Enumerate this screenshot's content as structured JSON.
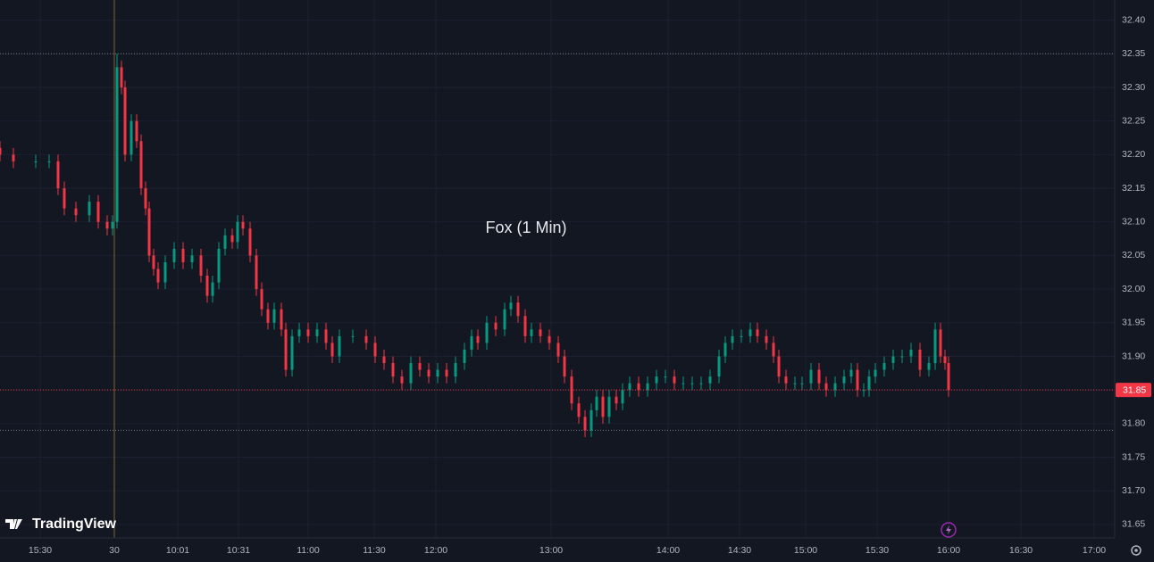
{
  "chart_data": {
    "type": "candlestick",
    "title": "Fox (1 Min)",
    "brand": "TradingView",
    "up_color": "#089981",
    "down_color": "#f23645",
    "grid": true,
    "xlim": [
      0,
      1248
    ],
    "ylim": [
      31.63,
      32.43
    ],
    "yticks": [
      31.65,
      {
        "value": 31.7,
        "label": "31.70"
      },
      31.75,
      {
        "value": 31.8,
        "label": "31.80"
      },
      31.85,
      {
        "value": 31.9,
        "label": "31.90"
      },
      31.95,
      {
        "value": 32.0,
        "label": "32.00"
      },
      32.05,
      {
        "value": 32.1,
        "label": "32.10"
      },
      32.15,
      {
        "value": 32.2,
        "label": "32.20"
      },
      32.25,
      {
        "value": 32.3,
        "label": "32.30"
      },
      32.35,
      {
        "value": 32.4,
        "label": "32.40"
      }
    ],
    "xticks": [
      {
        "value": 45,
        "label": "15:30"
      },
      {
        "value": 128,
        "label": "30"
      },
      {
        "value": 199,
        "label": "10:01"
      },
      {
        "value": 267,
        "label": "10:31"
      },
      {
        "value": 345,
        "label": "11:00"
      },
      {
        "value": 419,
        "label": "11:30"
      },
      {
        "value": 488,
        "label": "12:00"
      },
      {
        "value": 617,
        "label": "13:00"
      },
      {
        "value": 748,
        "label": "14:00"
      },
      {
        "value": 828,
        "label": "14:30"
      },
      {
        "value": 902,
        "label": "15:00"
      },
      {
        "value": 982,
        "label": "15:30"
      },
      {
        "value": 1062,
        "label": "16:00"
      },
      {
        "value": 1143,
        "label": "16:30"
      },
      {
        "value": 1225,
        "label": "17:00"
      }
    ],
    "session_break": 128,
    "price_lines": [
      32.35,
      31.79
    ],
    "last_price": 31.85,
    "x": [
      0,
      15,
      40,
      55,
      65,
      72,
      85,
      100,
      110,
      120,
      126,
      131,
      136,
      140,
      147,
      153,
      158,
      163,
      167,
      172,
      177,
      185,
      195,
      205,
      215,
      225,
      232,
      238,
      245,
      252,
      260,
      266,
      272,
      280,
      287,
      293,
      300,
      307,
      315,
      320,
      327,
      335,
      345,
      355,
      365,
      372,
      380,
      395,
      410,
      420,
      430,
      440,
      450,
      460,
      470,
      480,
      490,
      500,
      510,
      520,
      528,
      535,
      545,
      555,
      565,
      572,
      580,
      588,
      595,
      605,
      615,
      625,
      632,
      640,
      648,
      655,
      662,
      668,
      675,
      682,
      690,
      697,
      705,
      715,
      725,
      735,
      745,
      755,
      765,
      775,
      785,
      795,
      805,
      812,
      820,
      830,
      840,
      848,
      858,
      866,
      872,
      880,
      890,
      898,
      908,
      917,
      925,
      935,
      945,
      953,
      960,
      967,
      973,
      980,
      990,
      1000,
      1010,
      1020,
      1030,
      1040,
      1047,
      1053,
      1058,
      1062
    ],
    "open": [
      32.21,
      32.2,
      32.19,
      32.19,
      32.19,
      32.15,
      32.12,
      32.11,
      32.13,
      32.1,
      32.09,
      32.1,
      32.33,
      32.3,
      32.2,
      32.25,
      32.22,
      32.15,
      32.12,
      32.05,
      32.03,
      32.01,
      32.04,
      32.06,
      32.04,
      32.05,
      32.02,
      31.99,
      32.01,
      32.06,
      32.08,
      32.07,
      32.1,
      32.09,
      32.05,
      32.0,
      31.97,
      31.95,
      31.97,
      31.94,
      31.88,
      31.93,
      31.94,
      31.93,
      31.94,
      31.92,
      31.9,
      31.93,
      31.93,
      31.92,
      31.9,
      31.89,
      31.87,
      31.86,
      31.89,
      31.88,
      31.87,
      31.88,
      31.87,
      31.89,
      31.91,
      31.93,
      31.92,
      31.95,
      31.94,
      31.97,
      31.98,
      31.96,
      31.93,
      31.94,
      31.93,
      31.92,
      31.9,
      31.87,
      31.83,
      31.81,
      31.79,
      31.82,
      31.84,
      31.81,
      31.84,
      31.83,
      31.85,
      31.86,
      31.85,
      31.86,
      31.87,
      31.87,
      31.86,
      31.86,
      31.86,
      31.86,
      31.87,
      31.9,
      31.92,
      31.93,
      31.93,
      31.94,
      31.93,
      31.92,
      31.9,
      31.87,
      31.86,
      31.86,
      31.86,
      31.88,
      31.86,
      31.85,
      31.86,
      31.87,
      31.88,
      31.85,
      31.85,
      31.87,
      31.88,
      31.89,
      31.9,
      31.9,
      31.91,
      31.88,
      31.89,
      31.94,
      31.9,
      31.89
    ],
    "high": [
      32.22,
      32.21,
      32.2,
      32.2,
      32.2,
      32.16,
      32.13,
      32.14,
      32.14,
      32.11,
      32.11,
      32.35,
      32.34,
      32.31,
      32.26,
      32.26,
      32.23,
      32.16,
      32.13,
      32.06,
      32.04,
      32.05,
      32.07,
      32.07,
      32.06,
      32.06,
      32.03,
      32.02,
      32.07,
      32.09,
      32.09,
      32.11,
      32.11,
      32.1,
      32.06,
      32.01,
      31.98,
      31.98,
      31.98,
      31.95,
      31.94,
      31.95,
      31.95,
      31.95,
      31.95,
      31.93,
      31.94,
      31.94,
      31.94,
      31.93,
      31.91,
      31.9,
      31.88,
      31.9,
      31.9,
      31.89,
      31.89,
      31.89,
      31.9,
      31.92,
      31.94,
      31.94,
      31.96,
      31.96,
      31.98,
      31.99,
      31.99,
      31.97,
      31.95,
      31.95,
      31.94,
      31.93,
      31.91,
      31.88,
      31.84,
      31.82,
      31.83,
      31.85,
      31.85,
      31.85,
      31.85,
      31.86,
      31.87,
      31.87,
      31.87,
      31.88,
      31.88,
      31.88,
      31.87,
      31.87,
      31.87,
      31.88,
      31.91,
      31.93,
      31.94,
      31.94,
      31.95,
      31.95,
      31.94,
      31.93,
      31.91,
      31.88,
      31.87,
      31.87,
      31.89,
      31.89,
      31.87,
      31.87,
      31.88,
      31.89,
      31.89,
      31.86,
      31.88,
      31.89,
      31.9,
      31.91,
      31.91,
      31.92,
      31.92,
      31.9,
      31.95,
      31.95,
      31.91,
      31.9
    ],
    "low": [
      32.19,
      32.18,
      32.18,
      32.18,
      32.14,
      32.11,
      32.1,
      32.1,
      32.09,
      32.08,
      32.08,
      32.09,
      32.29,
      32.19,
      32.19,
      32.21,
      32.14,
      32.11,
      32.04,
      32.02,
      32.0,
      32.0,
      32.03,
      32.03,
      32.03,
      32.01,
      31.98,
      31.98,
      32.0,
      32.05,
      32.06,
      32.06,
      32.08,
      32.04,
      31.99,
      31.96,
      31.94,
      31.94,
      31.93,
      31.87,
      31.87,
      31.92,
      31.92,
      31.92,
      31.91,
      31.89,
      31.89,
      31.92,
      31.91,
      31.89,
      31.88,
      31.86,
      31.85,
      31.85,
      31.87,
      31.86,
      31.86,
      31.86,
      31.86,
      31.88,
      31.9,
      31.91,
      31.91,
      31.93,
      31.93,
      31.96,
      31.95,
      31.92,
      31.92,
      31.92,
      31.91,
      31.89,
      31.86,
      31.82,
      31.8,
      31.78,
      31.78,
      31.81,
      31.8,
      31.8,
      31.82,
      31.82,
      31.84,
      31.84,
      31.84,
      31.85,
      31.86,
      31.85,
      31.85,
      31.85,
      31.85,
      31.85,
      31.86,
      31.89,
      31.91,
      31.92,
      31.92,
      31.92,
      31.91,
      31.89,
      31.86,
      31.85,
      31.85,
      31.85,
      31.85,
      31.85,
      31.84,
      31.84,
      31.85,
      31.86,
      31.84,
      31.84,
      31.84,
      31.86,
      31.87,
      31.88,
      31.89,
      31.89,
      31.87,
      31.87,
      31.88,
      31.89,
      31.88,
      31.84
    ],
    "close": [
      32.2,
      32.19,
      32.19,
      32.19,
      32.15,
      32.12,
      32.11,
      32.13,
      32.1,
      32.09,
      32.1,
      32.33,
      32.3,
      32.2,
      32.25,
      32.22,
      32.15,
      32.12,
      32.05,
      32.03,
      32.01,
      32.04,
      32.06,
      32.04,
      32.05,
      32.02,
      31.99,
      32.01,
      32.06,
      32.08,
      32.07,
      32.1,
      32.09,
      32.05,
      32.0,
      31.97,
      31.95,
      31.97,
      31.94,
      31.88,
      31.93,
      31.94,
      31.93,
      31.94,
      31.92,
      31.9,
      31.93,
      31.93,
      31.92,
      31.9,
      31.89,
      31.87,
      31.86,
      31.89,
      31.88,
      31.87,
      31.88,
      31.87,
      31.89,
      31.91,
      31.93,
      31.92,
      31.95,
      31.94,
      31.97,
      31.98,
      31.96,
      31.93,
      31.94,
      31.93,
      31.92,
      31.9,
      31.87,
      31.83,
      31.81,
      31.79,
      31.82,
      31.84,
      31.81,
      31.84,
      31.83,
      31.85,
      31.86,
      31.85,
      31.86,
      31.87,
      31.87,
      31.86,
      31.86,
      31.86,
      31.86,
      31.87,
      31.9,
      31.92,
      31.93,
      31.93,
      31.94,
      31.93,
      31.92,
      31.9,
      31.87,
      31.86,
      31.86,
      31.86,
      31.88,
      31.86,
      31.85,
      31.86,
      31.87,
      31.88,
      31.85,
      31.85,
      31.87,
      31.88,
      31.89,
      31.9,
      31.9,
      31.91,
      31.88,
      31.89,
      31.94,
      31.9,
      31.89,
      31.85
    ]
  }
}
